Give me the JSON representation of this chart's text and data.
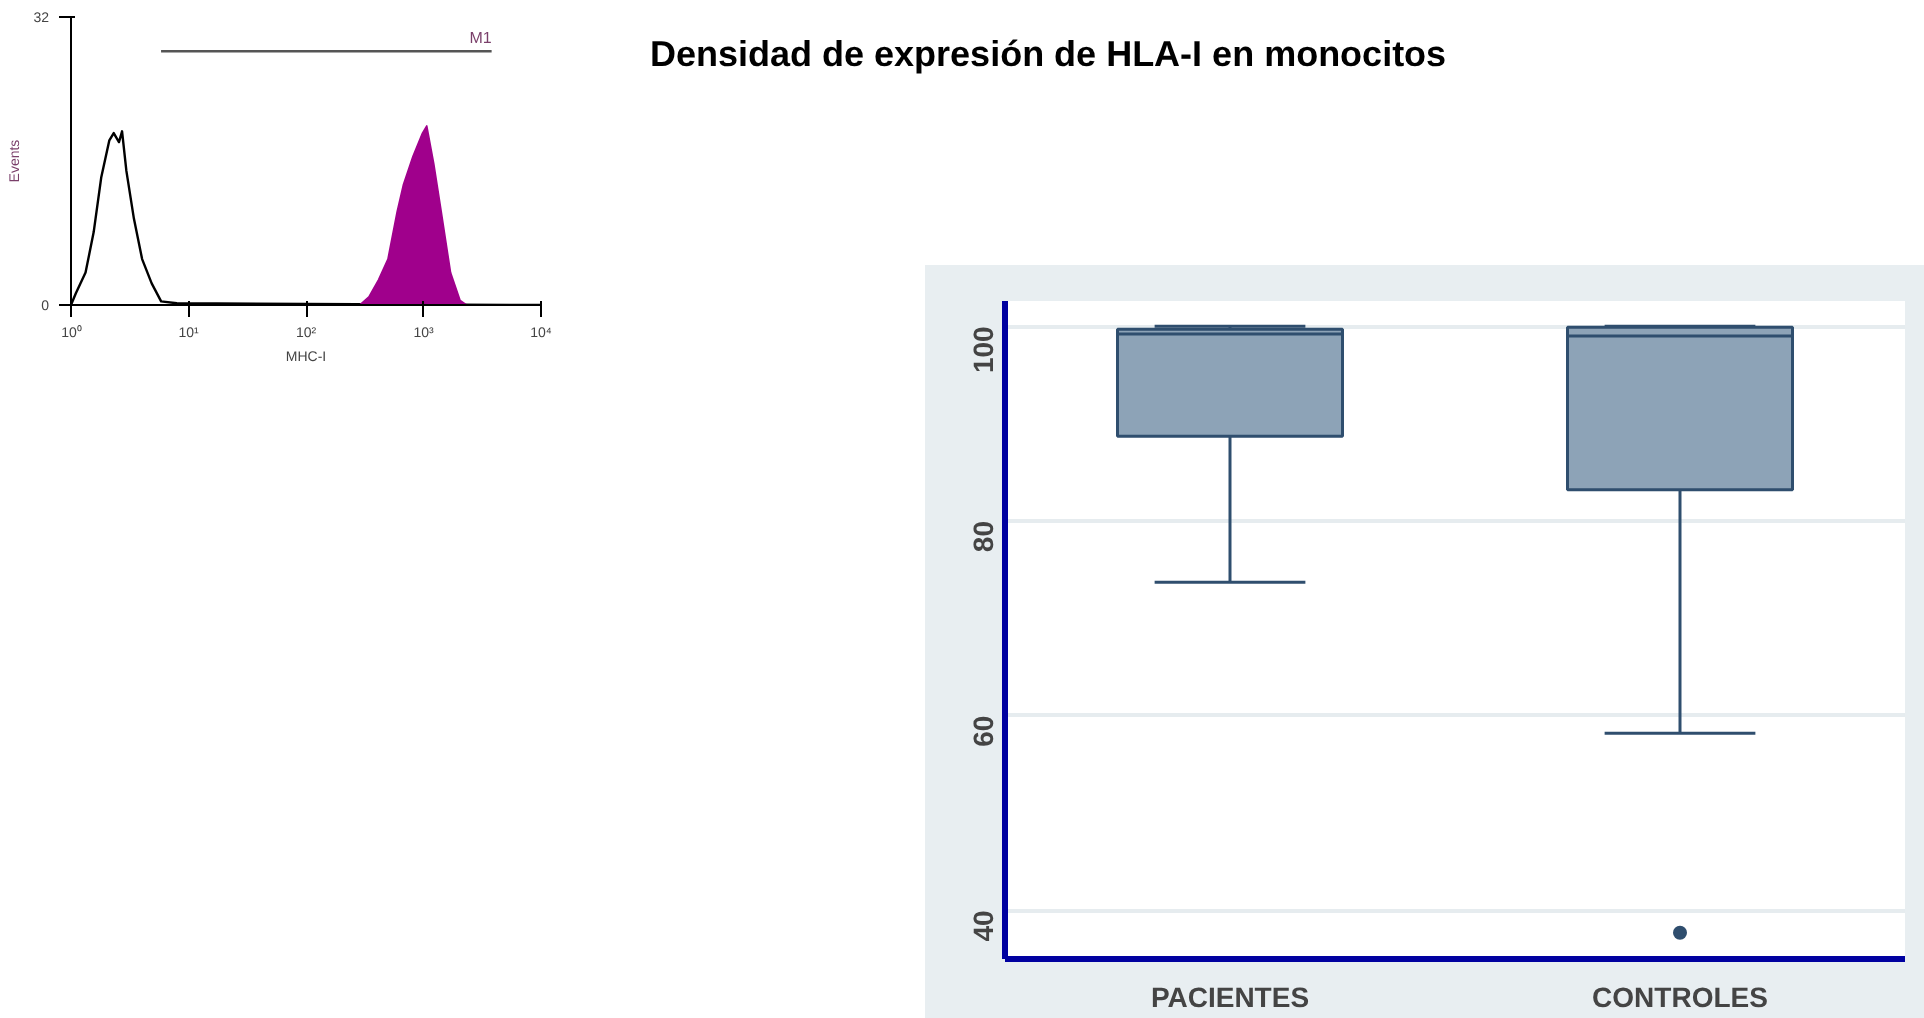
{
  "chart_data": [
    {
      "type": "line",
      "xlabel": "MHC-I",
      "ylabel": "Events",
      "log": "x",
      "xlim": [
        1,
        10000
      ],
      "ylim": [
        0,
        32
      ],
      "xticks": [
        {
          "value": 1,
          "label": "10⁰"
        },
        {
          "value": 10,
          "label": "10¹"
        },
        {
          "value": 100,
          "label": "10²"
        },
        {
          "value": 1000,
          "label": "10³"
        },
        {
          "value": 10000,
          "label": "10⁴"
        }
      ],
      "yticks": [
        0,
        32
      ],
      "grid": false,
      "series": [
        {
          "type": "line",
          "color": "#000000",
          "x": [
            1,
            1.1,
            1.33,
            1.56,
            1.81,
            2.12,
            2.31,
            2.56,
            2.72,
            2.96,
            3.43,
            4.03,
            4.86,
            5.85,
            7.96,
            10000
          ],
          "values": [
            0,
            1.3,
            3.6,
            8.1,
            14.2,
            18.3,
            19.1,
            18.1,
            19.3,
            14.9,
            9.6,
            5.1,
            2.4,
            0.4,
            0.2,
            0
          ]
        },
        {
          "type": "line",
          "name": "M1",
          "color": "#555555",
          "x": [
            5.84,
            3800
          ],
          "values": [
            28.2,
            28.2
          ]
        },
        {
          "type": "area",
          "color": "#a0008c",
          "x": [
            286,
            343,
            414,
            498,
            597,
            675,
            812,
            980,
            1066,
            1223,
            1415,
            1700,
            2050,
            2323
          ],
          "values": [
            0,
            0.9,
            2.8,
            5.1,
            10.4,
            13.4,
            16.5,
            19.1,
            19.9,
            15.7,
            10.4,
            3.6,
            0.5,
            0
          ]
        }
      ]
    },
    {
      "type": "box",
      "title": "Densidad de expresión de HLA-I en monocitos",
      "categories": [
        "PACIENTES",
        "CONTROLES"
      ],
      "ylim": [
        35,
        102.6
      ],
      "yticks": [
        40,
        60,
        80,
        100
      ],
      "grid": "y",
      "color": "#8da3b7",
      "boxes": [
        {
          "low": 73.7,
          "q1": 88.7,
          "median": 99.2,
          "q3": 99.7,
          "high": 100
        },
        {
          "low": 58.2,
          "q1": 83.2,
          "median": 99.0,
          "q3": 99.9,
          "high": 100,
          "outliers": [
            37.7
          ]
        }
      ]
    }
  ]
}
